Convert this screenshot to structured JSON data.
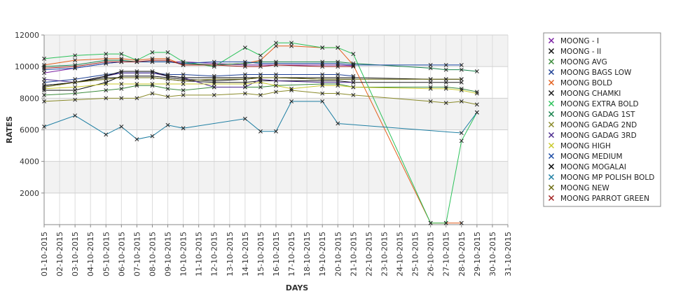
{
  "chart_data": {
    "type": "line",
    "title": "",
    "xlabel": "DAYS",
    "ylabel": "RATES",
    "ylim": [
      0,
      12000
    ],
    "yticks": [
      2000,
      4000,
      6000,
      8000,
      10000,
      12000
    ],
    "xticks": [
      "01-10-2015",
      "02-10-2015",
      "03-10-2015",
      "04-10-2015",
      "05-10-2015",
      "06-10-2015",
      "07-10-2015",
      "08-10-2015",
      "09-10-2015",
      "10-10-2015",
      "11-10-2015",
      "12-10-2015",
      "13-10-2015",
      "14-10-2015",
      "15-10-2015",
      "16-10-2015",
      "17-10-2015",
      "18-10-2015",
      "19-10-2015",
      "20-10-2015",
      "21-10-2015",
      "22-10-2015",
      "23-10-2015",
      "24-10-2015",
      "25-10-2015",
      "26-10-2015",
      "27-10-2015",
      "28-10-2015",
      "29-10-2015",
      "30-10-2015",
      "31-10-2015"
    ],
    "grid": true,
    "legend_position": "right",
    "series": [
      {
        "name": "MOONG - I",
        "color": "#7a1fa2",
        "points": [
          [
            1,
            9600
          ],
          [
            3,
            9900
          ],
          [
            5,
            10200
          ],
          [
            6,
            10300
          ],
          [
            10,
            10300
          ],
          [
            12,
            10200
          ],
          [
            14,
            10100
          ],
          [
            15,
            10100
          ],
          [
            16,
            10100
          ],
          [
            19,
            10100
          ],
          [
            20,
            10100
          ],
          [
            21,
            10050
          ]
        ]
      },
      {
        "name": "MOONG - II",
        "color": "#111111",
        "points": [
          [
            1,
            8500
          ],
          [
            3,
            8500
          ],
          [
            5,
            9000
          ],
          [
            6,
            9400
          ],
          [
            7,
            9400
          ],
          [
            8,
            9400
          ],
          [
            9,
            9300
          ],
          [
            10,
            9200
          ],
          [
            12,
            9100
          ],
          [
            14,
            9200
          ],
          [
            15,
            9300
          ],
          [
            16,
            9300
          ],
          [
            19,
            9300
          ],
          [
            20,
            9300
          ],
          [
            21,
            9300
          ],
          [
            26,
            9200
          ],
          [
            27,
            9200
          ],
          [
            28,
            9200
          ]
        ]
      },
      {
        "name": "MOONG AVG",
        "color": "#3a8a3a",
        "points": [
          [
            1,
            8200
          ],
          [
            3,
            8300
          ],
          [
            5,
            8500
          ],
          [
            6,
            8600
          ],
          [
            7,
            8800
          ],
          [
            8,
            8800
          ],
          [
            9,
            8600
          ],
          [
            10,
            8500
          ],
          [
            12,
            8700
          ],
          [
            14,
            8700
          ],
          [
            15,
            8700
          ],
          [
            16,
            8800
          ],
          [
            19,
            8900
          ],
          [
            20,
            8900
          ],
          [
            21,
            8700
          ],
          [
            26,
            8700
          ],
          [
            27,
            8700
          ],
          [
            28,
            8600
          ],
          [
            29,
            8400
          ]
        ]
      },
      {
        "name": "MOONG BAGS LOW",
        "color": "#1c3f94",
        "points": [
          [
            1,
            9000
          ],
          [
            3,
            9200
          ],
          [
            5,
            9500
          ],
          [
            6,
            9600
          ],
          [
            7,
            9600
          ],
          [
            8,
            9600
          ],
          [
            9,
            9500
          ],
          [
            10,
            9500
          ],
          [
            12,
            9400
          ],
          [
            14,
            9500
          ],
          [
            15,
            9500
          ],
          [
            16,
            9500
          ],
          [
            19,
            9500
          ],
          [
            20,
            9500
          ],
          [
            21,
            9400
          ]
        ]
      },
      {
        "name": "MOONG BOLD",
        "color": "#e35f1c",
        "points": [
          [
            1,
            10100
          ],
          [
            3,
            10400
          ],
          [
            5,
            10500
          ],
          [
            6,
            10500
          ],
          [
            7,
            10400
          ],
          [
            8,
            10500
          ],
          [
            9,
            10500
          ],
          [
            10,
            10100
          ],
          [
            12,
            10100
          ],
          [
            14,
            10200
          ],
          [
            15,
            10400
          ],
          [
            16,
            11300
          ],
          [
            17,
            11300
          ],
          [
            19,
            11200
          ],
          [
            20,
            11200
          ],
          [
            21,
            10100
          ],
          [
            26,
            100
          ],
          [
            27,
            100
          ],
          [
            28,
            100
          ]
        ]
      },
      {
        "name": "MOONG CHAMKI",
        "color": "#1a1a1a",
        "points": [
          [
            1,
            8800
          ],
          [
            3,
            9000
          ],
          [
            5,
            9300
          ],
          [
            6,
            9300
          ],
          [
            7,
            9300
          ],
          [
            8,
            9300
          ],
          [
            9,
            9200
          ],
          [
            10,
            9100
          ],
          [
            12,
            9000
          ],
          [
            14,
            9000
          ],
          [
            15,
            9100
          ],
          [
            16,
            9100
          ],
          [
            19,
            9100
          ],
          [
            20,
            9100
          ],
          [
            21,
            9000
          ],
          [
            26,
            9000
          ],
          [
            27,
            9000
          ],
          [
            28,
            9000
          ]
        ]
      },
      {
        "name": "MOONG EXTRA BOLD",
        "color": "#2cc25a",
        "points": [
          [
            1,
            10500
          ],
          [
            3,
            10700
          ],
          [
            5,
            10800
          ],
          [
            6,
            10800
          ],
          [
            7,
            10400
          ],
          [
            8,
            10900
          ],
          [
            9,
            10900
          ],
          [
            10,
            10300
          ],
          [
            12,
            10000
          ],
          [
            14,
            11200
          ],
          [
            15,
            10700
          ],
          [
            16,
            11500
          ],
          [
            17,
            11500
          ],
          [
            19,
            11200
          ],
          [
            20,
            11200
          ],
          [
            21,
            10800
          ],
          [
            26,
            100
          ],
          [
            27,
            100
          ],
          [
            28,
            5300
          ],
          [
            29,
            7100
          ]
        ]
      },
      {
        "name": "MOONG GADAG 1ST",
        "color": "#15804a",
        "points": [
          [
            1,
            10000
          ],
          [
            3,
            10100
          ],
          [
            5,
            10400
          ],
          [
            6,
            10400
          ],
          [
            7,
            10300
          ],
          [
            8,
            10300
          ],
          [
            9,
            10300
          ],
          [
            10,
            10200
          ],
          [
            12,
            10100
          ],
          [
            14,
            10200
          ],
          [
            15,
            10300
          ],
          [
            16,
            10300
          ],
          [
            19,
            10300
          ],
          [
            20,
            10300
          ],
          [
            21,
            10200
          ],
          [
            26,
            9900
          ],
          [
            27,
            9800
          ],
          [
            28,
            9800
          ],
          [
            29,
            9700
          ]
        ]
      },
      {
        "name": "MOONG GADAG 2ND",
        "color": "#8a8a2a",
        "points": [
          [
            1,
            7800
          ],
          [
            3,
            7900
          ],
          [
            5,
            8000
          ],
          [
            6,
            8000
          ],
          [
            7,
            8000
          ],
          [
            8,
            8300
          ],
          [
            9,
            8100
          ],
          [
            10,
            8200
          ],
          [
            12,
            8200
          ],
          [
            14,
            8300
          ],
          [
            15,
            8200
          ],
          [
            16,
            8400
          ],
          [
            17,
            8500
          ],
          [
            19,
            8300
          ],
          [
            20,
            8300
          ],
          [
            21,
            8200
          ],
          [
            26,
            7800
          ],
          [
            27,
            7700
          ],
          [
            28,
            7800
          ],
          [
            29,
            7600
          ]
        ]
      },
      {
        "name": "MOONG GADAG 3RD",
        "color": "#4b2a8f",
        "points": [
          [
            1,
            9200
          ],
          [
            3,
            9000
          ],
          [
            5,
            9400
          ],
          [
            6,
            9600
          ],
          [
            7,
            9600
          ],
          [
            8,
            9600
          ],
          [
            9,
            9400
          ],
          [
            10,
            9300
          ],
          [
            12,
            8700
          ],
          [
            14,
            8700
          ],
          [
            15,
            9200
          ],
          [
            16,
            9100
          ],
          [
            19,
            9000
          ],
          [
            20,
            9000
          ],
          [
            21,
            9000
          ]
        ]
      },
      {
        "name": "MOONG HIGH",
        "color": "#c9c92a",
        "points": [
          [
            1,
            8600
          ],
          [
            3,
            8700
          ],
          [
            5,
            8900
          ],
          [
            6,
            8900
          ],
          [
            7,
            8900
          ],
          [
            8,
            8900
          ],
          [
            9,
            8900
          ],
          [
            10,
            8900
          ],
          [
            12,
            8900
          ],
          [
            14,
            8900
          ],
          [
            15,
            9000
          ],
          [
            16,
            8800
          ],
          [
            17,
            8600
          ],
          [
            19,
            8800
          ],
          [
            20,
            8800
          ],
          [
            21,
            8700
          ],
          [
            26,
            8600
          ],
          [
            27,
            8600
          ],
          [
            28,
            8500
          ],
          [
            29,
            8300
          ]
        ]
      },
      {
        "name": "MOONG MEDIUM",
        "color": "#1a4aa5",
        "points": [
          [
            1,
            9800
          ],
          [
            3,
            9900
          ],
          [
            5,
            10200
          ],
          [
            6,
            10300
          ],
          [
            7,
            10300
          ],
          [
            8,
            10300
          ],
          [
            9,
            10300
          ],
          [
            10,
            10200
          ],
          [
            12,
            10300
          ],
          [
            14,
            10300
          ],
          [
            15,
            10200
          ],
          [
            16,
            10200
          ],
          [
            19,
            10200
          ],
          [
            20,
            10200
          ],
          [
            21,
            10100
          ],
          [
            26,
            10100
          ],
          [
            27,
            10100
          ],
          [
            28,
            10100
          ]
        ]
      },
      {
        "name": "MOONG MOGALAI",
        "color": "#000000",
        "points": [
          [
            1,
            8800
          ],
          [
            3,
            9000
          ],
          [
            5,
            9400
          ],
          [
            6,
            9700
          ],
          [
            7,
            9700
          ],
          [
            8,
            9700
          ],
          [
            9,
            9400
          ],
          [
            10,
            9300
          ],
          [
            12,
            9300
          ],
          [
            14,
            9300
          ],
          [
            15,
            9300
          ],
          [
            16,
            9300
          ],
          [
            19,
            9200
          ],
          [
            20,
            9200
          ],
          [
            21,
            9200
          ]
        ]
      },
      {
        "name": "MOONG MP POLISH BOLD",
        "color": "#1f7fa3",
        "points": [
          [
            1,
            6200
          ],
          [
            3,
            6900
          ],
          [
            5,
            5700
          ],
          [
            6,
            6200
          ],
          [
            7,
            5400
          ],
          [
            8,
            5600
          ],
          [
            9,
            6300
          ],
          [
            10,
            6100
          ],
          [
            14,
            6700
          ],
          [
            15,
            5900
          ],
          [
            16,
            5900
          ],
          [
            17,
            7800
          ],
          [
            19,
            7800
          ],
          [
            20,
            6400
          ],
          [
            28,
            5800
          ],
          [
            29,
            7100
          ]
        ]
      },
      {
        "name": "MOONG NEW",
        "color": "#6b6b10",
        "points": [
          [
            1,
            8700
          ],
          [
            3,
            9000
          ],
          [
            5,
            9200
          ],
          [
            6,
            9300
          ],
          [
            7,
            9300
          ],
          [
            8,
            9300
          ],
          [
            9,
            9200
          ],
          [
            10,
            9100
          ],
          [
            12,
            9200
          ],
          [
            14,
            9200
          ],
          [
            15,
            9300
          ],
          [
            16,
            9300
          ],
          [
            19,
            9200
          ],
          [
            20,
            9200
          ],
          [
            21,
            9200
          ],
          [
            26,
            9200
          ],
          [
            27,
            9200
          ],
          [
            28,
            9200
          ]
        ]
      },
      {
        "name": "MOONG PARROT GREEN",
        "color": "#a02020",
        "points": [
          [
            1,
            9900
          ],
          [
            3,
            10000
          ],
          [
            5,
            10300
          ],
          [
            6,
            10300
          ],
          [
            7,
            10300
          ],
          [
            8,
            10400
          ],
          [
            9,
            10400
          ],
          [
            10,
            10100
          ],
          [
            12,
            10100
          ],
          [
            14,
            10000
          ],
          [
            15,
            10000
          ],
          [
            16,
            10100
          ],
          [
            19,
            10000
          ],
          [
            20,
            10000
          ],
          [
            21,
            10000
          ]
        ]
      }
    ]
  }
}
